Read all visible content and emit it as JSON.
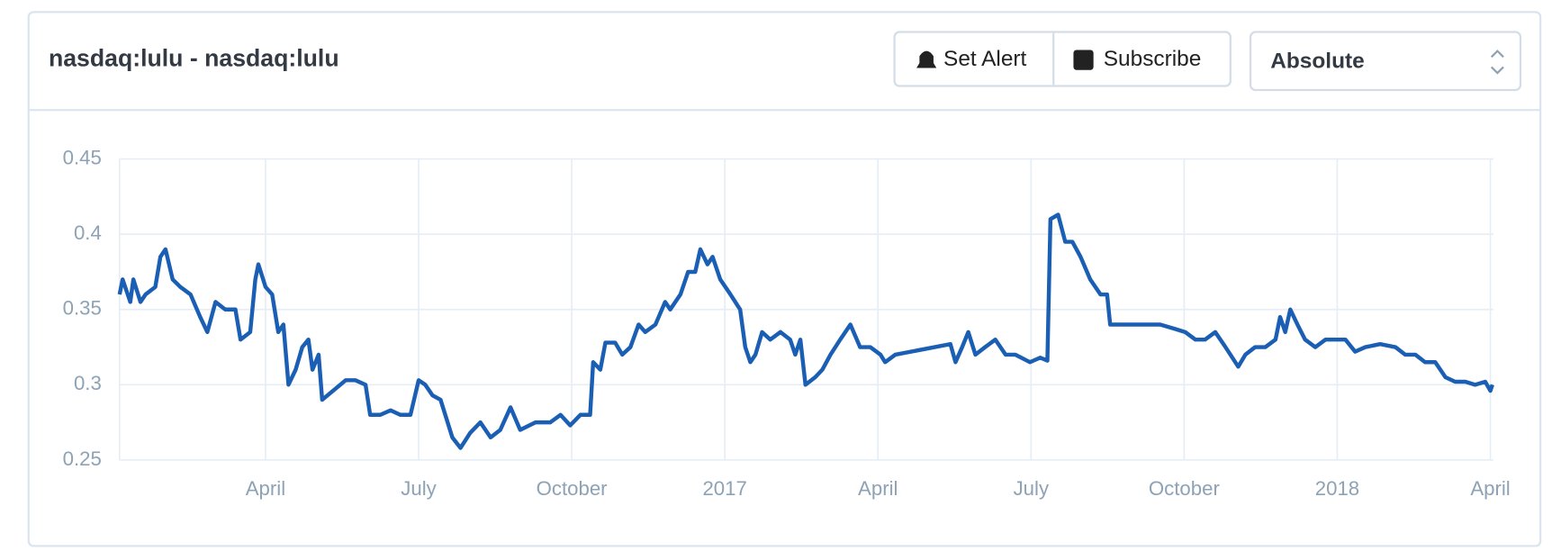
{
  "header": {
    "title": "nasdaq:lulu - nasdaq:lulu",
    "buttons": [
      "Set Alert",
      "Subscribe"
    ],
    "select": "Absolute"
  },
  "chart_data": {
    "type": "line",
    "color": "#1a5fb4",
    "grid": true,
    "x": [
      0.14,
      0.2,
      0.35,
      0.41,
      0.55,
      0.65,
      0.84,
      0.94,
      1.04,
      1.18,
      1.33,
      1.53,
      1.72,
      1.86,
      2.02,
      2.21,
      2.41,
      2.51,
      2.7,
      2.8,
      2.86,
      3.0,
      3.13,
      3.25,
      3.35,
      3.45,
      3.59,
      3.72,
      3.84,
      3.92,
      4.04,
      4.11,
      4.57,
      4.76,
      4.96,
      5.05,
      5.25,
      5.45,
      5.64,
      5.84,
      6.0,
      6.13,
      6.27,
      6.43,
      6.66,
      6.82,
      7.01,
      7.21,
      7.41,
      7.6,
      7.8,
      7.99,
      8.29,
      8.58,
      8.78,
      8.97,
      9.17,
      9.36,
      9.42,
      9.56,
      9.66,
      9.85,
      9.99,
      10.15,
      10.31,
      10.44,
      10.64,
      10.83,
      10.93,
      11.13,
      11.28,
      11.42,
      11.52,
      11.66,
      11.76,
      11.91,
      12.11,
      12.3,
      12.4,
      12.5,
      12.6,
      12.73,
      12.89,
      13.09,
      13.28,
      13.38,
      13.48,
      13.58,
      13.77,
      13.91,
      14.07,
      14.26,
      14.46,
      14.65,
      14.85,
      15.05,
      15.14,
      15.34,
      16.42,
      16.52,
      16.65,
      16.77,
      16.91,
      17.1,
      17.3,
      17.5,
      17.69,
      17.98,
      18.18,
      18.32,
      18.38,
      18.53,
      18.67,
      18.81,
      18.97,
      19.16,
      19.36,
      19.49,
      19.55,
      19.75,
      20.04,
      20.34,
      20.53,
      20.83,
      21.02,
      21.22,
      21.41,
      21.61,
      21.81,
      22.06,
      22.2,
      22.39,
      22.59,
      22.79,
      22.88,
      22.98,
      23.08,
      23.22,
      23.37,
      23.57,
      23.77,
      23.96,
      24.16,
      24.35,
      24.55,
      24.84,
      25.14,
      25.33,
      25.53,
      25.72,
      25.92,
      26.12,
      26.31,
      26.51,
      26.7,
      26.9,
      27.0,
      27.04
    ],
    "values": [
      0.36,
      0.37,
      0.355,
      0.37,
      0.355,
      0.36,
      0.365,
      0.385,
      0.39,
      0.37,
      0.365,
      0.36,
      0.345,
      0.335,
      0.355,
      0.35,
      0.35,
      0.33,
      0.335,
      0.37,
      0.38,
      0.365,
      0.36,
      0.335,
      0.34,
      0.3,
      0.31,
      0.325,
      0.33,
      0.31,
      0.32,
      0.29,
      0.303,
      0.303,
      0.3,
      0.28,
      0.28,
      0.283,
      0.28,
      0.28,
      0.303,
      0.3,
      0.293,
      0.29,
      0.265,
      0.258,
      0.268,
      0.275,
      0.265,
      0.27,
      0.285,
      0.27,
      0.275,
      0.275,
      0.28,
      0.273,
      0.28,
      0.28,
      0.315,
      0.31,
      0.328,
      0.328,
      0.32,
      0.325,
      0.34,
      0.335,
      0.34,
      0.355,
      0.35,
      0.36,
      0.375,
      0.375,
      0.39,
      0.38,
      0.385,
      0.37,
      0.36,
      0.35,
      0.325,
      0.315,
      0.32,
      0.335,
      0.33,
      0.335,
      0.33,
      0.32,
      0.33,
      0.3,
      0.305,
      0.31,
      0.32,
      0.33,
      0.34,
      0.325,
      0.325,
      0.32,
      0.315,
      0.32,
      0.327,
      0.315,
      0.325,
      0.335,
      0.32,
      0.325,
      0.33,
      0.32,
      0.32,
      0.315,
      0.318,
      0.316,
      0.41,
      0.413,
      0.395,
      0.395,
      0.385,
      0.37,
      0.36,
      0.36,
      0.34,
      0.34,
      0.34,
      0.34,
      0.34,
      0.337,
      0.335,
      0.33,
      0.33,
      0.335,
      0.325,
      0.312,
      0.32,
      0.325,
      0.325,
      0.33,
      0.345,
      0.335,
      0.35,
      0.34,
      0.33,
      0.325,
      0.33,
      0.33,
      0.33,
      0.322,
      0.325,
      0.327,
      0.325,
      0.32,
      0.32,
      0.315,
      0.315,
      0.305,
      0.302,
      0.302,
      0.3,
      0.302,
      0.296,
      0.3
    ],
    "xlim": [
      0.14,
      27.06
    ],
    "xticks": [
      {
        "value": 3,
        "label": "April"
      },
      {
        "value": 6,
        "label": "July"
      },
      {
        "value": 9,
        "label": "October"
      },
      {
        "value": 12,
        "label": "2017"
      },
      {
        "value": 15,
        "label": "April"
      },
      {
        "value": 18,
        "label": "July"
      },
      {
        "value": 21,
        "label": "October"
      },
      {
        "value": 24,
        "label": "2018"
      },
      {
        "value": 27,
        "label": "April"
      }
    ],
    "ylim": [
      0.25,
      0.45
    ],
    "yticks": [
      0.25,
      0.3,
      0.35,
      0.4,
      0.45
    ]
  }
}
